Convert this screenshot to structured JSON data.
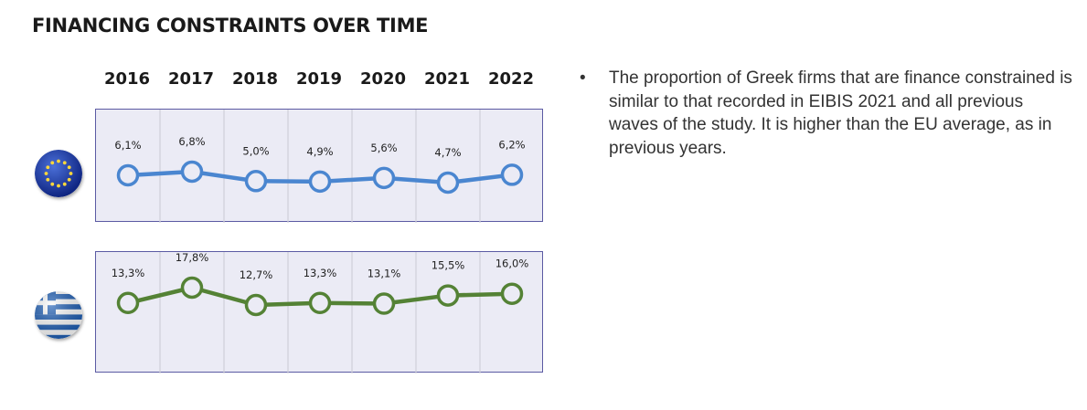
{
  "title": "FINANCING CONSTRAINTS OVER TIME",
  "bullet": {
    "marker": "•",
    "text": "The proportion of Greek firms that are finance constrained is similar to that recorded in EIBIS 2021 and all previous waves of the study. It is higher than the EU average, as in previous years."
  },
  "colors": {
    "eu_line": "#4a86d0",
    "gr_line": "#548235",
    "panel_bg": "#ebebf5",
    "panel_border": "#5b5aa3"
  },
  "icons": {
    "eu_flag": "eu-flag-icon",
    "gr_flag": "greece-flag-icon"
  },
  "chart_data": [
    {
      "type": "line",
      "categories": [
        "2016",
        "2017",
        "2018",
        "2019",
        "2020",
        "2021",
        "2022"
      ],
      "series": [
        {
          "values": [
            6.1,
            6.8,
            5.0,
            4.9,
            5.6,
            4.7,
            6.2
          ],
          "labels": [
            "6,1%",
            "6,8%",
            "5,0%",
            "4,9%",
            "5,6%",
            "4,7%",
            "6,2%"
          ],
          "color": "#4a86d0"
        }
      ],
      "grid": true
    },
    {
      "type": "line",
      "categories": [
        "2016",
        "2017",
        "2018",
        "2019",
        "2020",
        "2021",
        "2022"
      ],
      "series": [
        {
          "values": [
            13.3,
            17.8,
            12.7,
            13.3,
            13.1,
            15.5,
            16.0
          ],
          "labels": [
            "13,3%",
            "17,8%",
            "12,7%",
            "13,3%",
            "13,1%",
            "15,5%",
            "16,0%"
          ],
          "color": "#548235"
        }
      ],
      "grid": true
    }
  ]
}
